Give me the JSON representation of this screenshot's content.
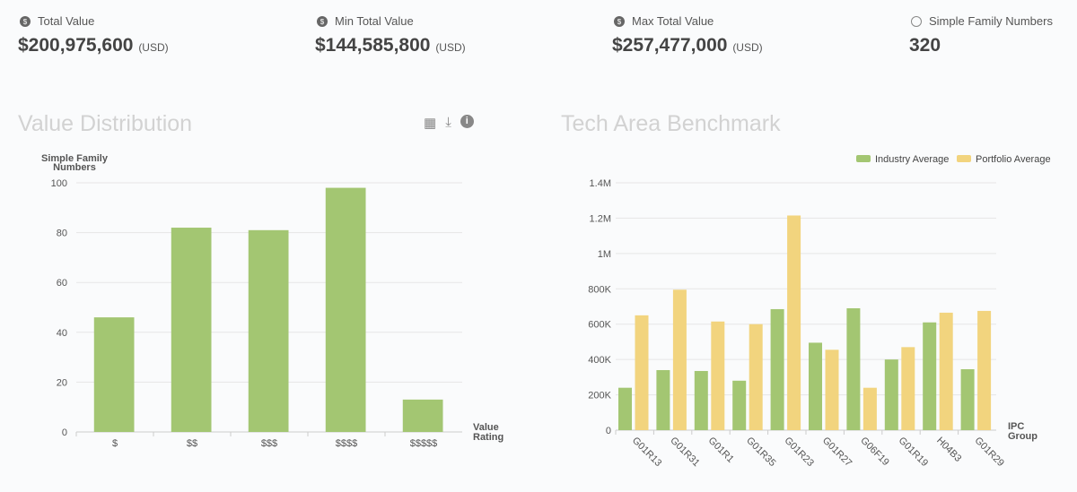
{
  "kpis": [
    {
      "label": "Total Value",
      "value": "$200,975,600",
      "unit": "(USD)",
      "icon": "money-bag-icon"
    },
    {
      "label": "Min Total Value",
      "value": "$144,585,800",
      "unit": "(USD)",
      "icon": "money-bag-icon"
    },
    {
      "label": "Max Total Value",
      "value": "$257,477,000",
      "unit": "(USD)",
      "icon": "money-bag-icon"
    },
    {
      "label": "Simple Family Numbers",
      "value": "320",
      "unit": "",
      "icon": "globe-icon"
    }
  ],
  "left_panel": {
    "title": "Value Distribution",
    "tools": [
      "table-icon",
      "download-icon",
      "info-icon"
    ]
  },
  "right_panel": {
    "title": "Tech Area Benchmark"
  },
  "chart_data": [
    {
      "type": "bar",
      "ylabel": "Simple Family Numbers",
      "xlabel": "Value Rating",
      "categories": [
        "$",
        "$$",
        "$$$",
        "$$$$",
        "$$$$$"
      ],
      "values": [
        46,
        82,
        81,
        98,
        13
      ],
      "ylim": [
        0,
        100
      ],
      "yticks": [
        "0",
        "20",
        "40",
        "60",
        "80",
        "100"
      ],
      "grid": true,
      "color": "#a3c672"
    },
    {
      "type": "bar",
      "xlabel": "IPC Group",
      "ylim": [
        0,
        1400000
      ],
      "yticks": [
        "0",
        "200K",
        "400K",
        "600K",
        "800K",
        "1M",
        "1.2M",
        "1.4M"
      ],
      "grid": true,
      "legend": "top-right",
      "categories": [
        "G01R13",
        "G01R31",
        "G01R1",
        "G01R35",
        "G01R23",
        "G01R27",
        "G06F19",
        "G01R19",
        "H04B3",
        "G01R29"
      ],
      "series": [
        {
          "name": "Industry Average",
          "color": "#a3c672",
          "values": [
            240000,
            340000,
            335000,
            280000,
            685000,
            495000,
            690000,
            400000,
            610000,
            345000
          ]
        },
        {
          "name": "Portfolio Average",
          "color": "#f2d47e",
          "values": [
            650000,
            795000,
            615000,
            600000,
            1215000,
            455000,
            240000,
            470000,
            665000,
            675000
          ]
        }
      ]
    }
  ]
}
